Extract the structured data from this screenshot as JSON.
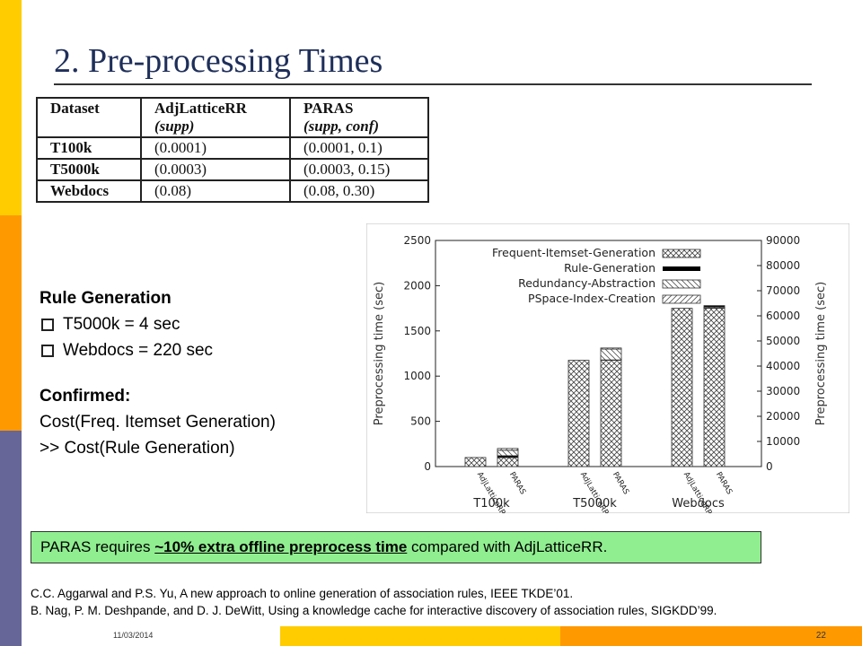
{
  "slide": {
    "title": "2. Pre-processing Times",
    "footer_date": "11/03/2014",
    "page_number": "22"
  },
  "table": {
    "headers": {
      "dataset": "Dataset",
      "adj": "AdjLatticeRR",
      "adj_sub": "(supp)",
      "paras": "PARAS",
      "paras_sub": "(supp, conf)"
    },
    "rows": [
      {
        "dataset": "T100k",
        "adj": "(0.0001)",
        "paras": "(0.0001, 0.1)"
      },
      {
        "dataset": "T5000k",
        "adj": "(0.0003)",
        "paras": "(0.0003, 0.15)"
      },
      {
        "dataset": "Webdocs",
        "adj": "(0.08)",
        "paras": "(0.08, 0.30)"
      }
    ]
  },
  "notes": {
    "rule_heading": "Rule Generation",
    "bullets": [
      "T5000k = 4 sec",
      "Webdocs = 220 sec"
    ],
    "confirmed_heading": "Confirmed:",
    "confirmed_line1": "Cost(Freq. Itemset Generation)",
    "confirmed_line2": ">> Cost(Rule Generation)"
  },
  "callout": {
    "before": "PARAS requires ",
    "emphasis": "~10% extra offline preprocess time",
    "after": " compared with AdjLatticeRR."
  },
  "references": [
    "C.C. Aggarwal and P.S. Yu, A new approach to online generation of association rules, IEEE TKDE’01.",
    "B. Nag, P. M. Deshpande, and D. J. DeWitt, Using a knowledge cache for interactive discovery of association rules, SIGKDD’99."
  ],
  "chart_data": {
    "type": "bar",
    "stacked": true,
    "ylabel": "Preprocessing time (sec)",
    "ylabel_right": "Preprocessing time (sec)",
    "ylim": [
      0,
      2500
    ],
    "yticks": [
      "0",
      "500",
      "1000",
      "1500",
      "2000",
      "2500"
    ],
    "ylim_right": [
      0,
      90000
    ],
    "yticks_right": [
      "0",
      "10000",
      "20000",
      "30000",
      "40000",
      "50000",
      "60000",
      "70000",
      "80000",
      "90000"
    ],
    "groups": [
      {
        "name": "T100k",
        "axis": "left",
        "bars": [
          {
            "label": "AdjLatticeRR",
            "fig": 100,
            "rule": 0,
            "red": 0,
            "psp": 0
          },
          {
            "label": "PARAS",
            "fig": 100,
            "rule": 20,
            "red": 60,
            "psp": 20
          }
        ]
      },
      {
        "name": "T5000k",
        "axis": "left",
        "bars": [
          {
            "label": "AdjLatticeRR",
            "fig": 1175,
            "rule": 0,
            "red": 0,
            "psp": 0
          },
          {
            "label": "PARAS",
            "fig": 1175,
            "rule": 4,
            "red": 120,
            "psp": 12
          }
        ]
      },
      {
        "name": "Webdocs",
        "axis": "right",
        "bars": [
          {
            "label": "AdjLatticeRR",
            "fig": 63000,
            "rule": 0,
            "red": 0,
            "psp": 0
          },
          {
            "label": "PARAS",
            "fig": 63000,
            "rule": 220,
            "red": 300,
            "psp": 0
          }
        ]
      }
    ],
    "legend": [
      {
        "name": "Frequent-Itemset-Generation",
        "pattern": "cross"
      },
      {
        "name": "Rule-Generation",
        "pattern": "solid"
      },
      {
        "name": "Redundancy-Abstraction",
        "pattern": "back-diag"
      },
      {
        "name": "PSpace-Index-Creation",
        "pattern": "diag"
      }
    ],
    "legend_position": "top-right"
  }
}
